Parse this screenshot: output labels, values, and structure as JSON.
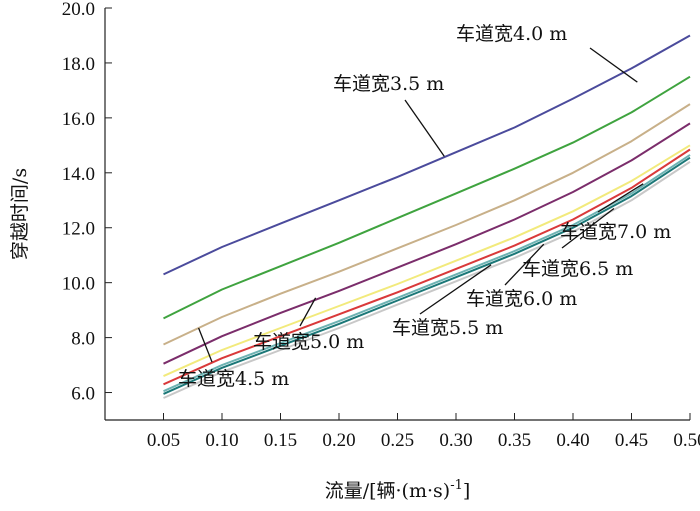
{
  "chart_data": {
    "type": "line",
    "xlabel": "流量/[辆·(m·s)",
    "xlabel_sup": "-1",
    "xlabel_end": "]",
    "ylabel": "穿越时间/s",
    "xlim": [
      0.0,
      0.5
    ],
    "ylim": [
      5.0,
      20.0
    ],
    "x_ticks": [
      "0.05",
      "0.10",
      "0.15",
      "0.20",
      "0.25",
      "0.30",
      "0.35",
      "0.40",
      "0.45",
      "0.50"
    ],
    "y_ticks": [
      "6.0",
      "8.0",
      "10.0",
      "12.0",
      "14.0",
      "16.0",
      "18.0",
      "20.0"
    ],
    "grid": false,
    "x": [
      0.05,
      0.1,
      0.15,
      0.2,
      0.25,
      0.3,
      0.35,
      0.4,
      0.45,
      0.5
    ],
    "series": [
      {
        "name": "车道宽4.0 m",
        "color": "#4b4b9c",
        "values": [
          10.3,
          11.3,
          12.15,
          13.0,
          13.85,
          14.75,
          15.65,
          16.7,
          17.8,
          19.0
        ]
      },
      {
        "name": "车道宽3.5 m",
        "color": "#3fa33f",
        "values": [
          8.7,
          9.75,
          10.6,
          11.45,
          12.35,
          13.25,
          14.15,
          15.1,
          16.2,
          17.5
        ]
      },
      {
        "name": "",
        "color": "#c8b089",
        "values": [
          7.75,
          8.75,
          9.6,
          10.4,
          11.25,
          12.1,
          13.0,
          14.0,
          15.15,
          16.5
        ]
      },
      {
        "name": "车道宽4.5 m",
        "color": "#7b2d6b",
        "values": [
          7.05,
          8.05,
          8.9,
          9.7,
          10.55,
          11.4,
          12.3,
          13.3,
          14.45,
          15.8
        ]
      },
      {
        "name": "车道宽5.0 m",
        "color": "#f2ea7c",
        "values": [
          6.6,
          7.55,
          8.35,
          9.15,
          9.95,
          10.8,
          11.65,
          12.6,
          13.7,
          15.0
        ]
      },
      {
        "name": "车道宽5.5 m",
        "color": "#d9393a",
        "values": [
          6.3,
          7.25,
          8.05,
          8.85,
          9.65,
          10.5,
          11.35,
          12.3,
          13.45,
          14.85
        ]
      },
      {
        "name": "车道宽6.0 m",
        "color": "#6db3b3",
        "values": [
          6.05,
          7.0,
          7.8,
          8.6,
          9.45,
          10.3,
          11.15,
          12.1,
          13.25,
          14.65
        ]
      },
      {
        "name": "车道宽6.5 m",
        "color": "#1c7878",
        "values": [
          5.95,
          6.9,
          7.7,
          8.5,
          9.35,
          10.2,
          11.05,
          12.0,
          13.15,
          14.55
        ]
      },
      {
        "name": "车道宽7.0 m",
        "color": "#c8c8c8",
        "values": [
          5.8,
          6.75,
          7.55,
          8.35,
          9.2,
          10.05,
          10.9,
          11.85,
          13.0,
          14.4
        ]
      }
    ],
    "annotations": [
      {
        "text": "车道宽4.0 m",
        "target": [
          0.455,
          17.3
        ]
      },
      {
        "text": "车道宽3.5 m",
        "target": [
          0.29,
          14.6
        ]
      },
      {
        "text": "车道宽7.0 m",
        "target": [
          0.46,
          13.6
        ]
      },
      {
        "text": "车道宽6.5 m",
        "target": [
          0.435,
          12.7
        ]
      },
      {
        "text": "车道宽6.0 m",
        "target": [
          0.375,
          11.4
        ]
      },
      {
        "text": "车道宽5.5 m",
        "target": [
          0.33,
          10.65
        ]
      },
      {
        "text": "车道宽5.0 m",
        "target": [
          0.18,
          9.45
        ]
      },
      {
        "text": "车道宽4.5 m",
        "target": [
          0.08,
          8.35
        ]
      }
    ]
  }
}
